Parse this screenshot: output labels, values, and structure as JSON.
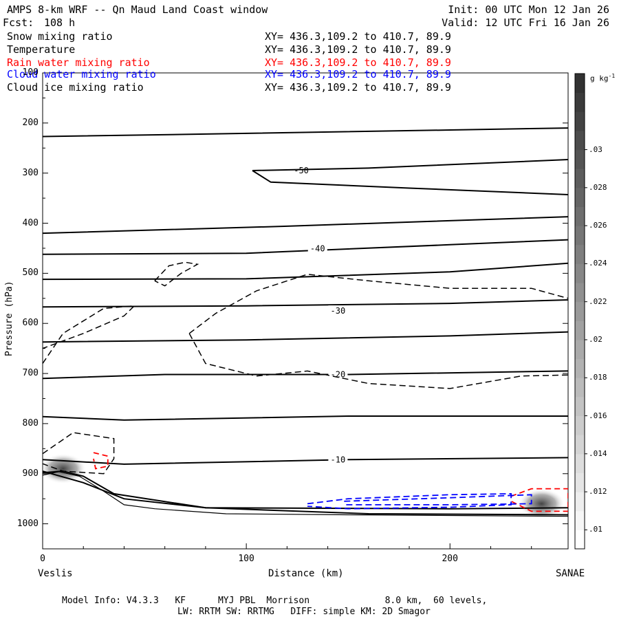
{
  "header": {
    "title": "AMPS 8-km WRF -- Qn Maud Land Coast window",
    "fcst_label": "Fcst:",
    "fcst_value": "108 h",
    "init": "Init: 00 UTC Mon 12 Jan 26",
    "valid": "Valid: 12 UTC Fri 16 Jan 26"
  },
  "legend": [
    {
      "name": "Snow mixing ratio",
      "xy": "XY= 436.3,109.2 to 410.7, 89.9",
      "color": "#000000"
    },
    {
      "name": "Temperature",
      "xy": "XY= 436.3,109.2 to 410.7, 89.9",
      "color": "#000000"
    },
    {
      "name": "Rain water mixing ratio",
      "xy": "XY= 436.3,109.2 to 410.7, 89.9",
      "color": "#ff0000"
    },
    {
      "name": "Cloud water mixing ratio",
      "xy": "XY= 436.3,109.2 to 410.7, 89.9",
      "color": "#0000ff"
    },
    {
      "name": "Cloud ice mixing ratio",
      "xy": "XY= 436.3,109.2 to 410.7, 89.9",
      "color": "#000000"
    }
  ],
  "axes": {
    "xlabel": "Distance (km)",
    "ylabel": "Pressure (hPa)",
    "left_location": "Veslis",
    "right_location": "SANAE"
  },
  "footer": {
    "line1": "Model Info: V4.3.3   KF      MYJ PBL  Morrison              8.0 km,  60 levels,",
    "line2": "LW: RRTM SW: RRTMG   DIFF: simple KM: 2D Smagor"
  },
  "chart_data": {
    "type": "contour",
    "title": "AMPS 8-km WRF -- Qn Maud Land Coast window",
    "xlabel": "Distance (km)",
    "ylabel": "Pressure (hPa)",
    "xlim": [
      0,
      258
    ],
    "ylim": [
      1050,
      100
    ],
    "x_ticks": [
      0,
      100,
      200
    ],
    "y_ticks": [
      100,
      200,
      300,
      400,
      500,
      600,
      700,
      800,
      900,
      1000
    ],
    "colorbar": {
      "unit": "g kg",
      "unit_exp": "-1",
      "labels": [
        ".01",
        ".012",
        ".014",
        ".016",
        ".018",
        ".02",
        ".022",
        ".024",
        ".026",
        ".028",
        ".03"
      ],
      "min": 0.009,
      "max": 0.034,
      "step": 0.001
    },
    "temperature_isotherms": [
      {
        "label": "-50",
        "label_at": [
          127,
          295
        ],
        "points": [
          [
            0,
            227
          ],
          [
            80,
            222
          ],
          [
            200,
            214
          ],
          [
            258,
            210
          ]
        ]
      },
      {
        "label": "",
        "points": [
          [
            103,
            295
          ],
          [
            160,
            290
          ],
          [
            258,
            273
          ]
        ]
      },
      {
        "label": "",
        "points": [
          [
            103,
            295
          ],
          [
            112,
            318
          ],
          [
            180,
            330
          ],
          [
            258,
            343
          ]
        ]
      },
      {
        "label": "",
        "points": [
          [
            0,
            420
          ],
          [
            120,
            406
          ],
          [
            258,
            387
          ]
        ]
      },
      {
        "label": "-40",
        "label_at": [
          135,
          451
        ],
        "points": [
          [
            0,
            462
          ],
          [
            100,
            460
          ],
          [
            200,
            443
          ],
          [
            258,
            433
          ]
        ]
      },
      {
        "label": "",
        "points": [
          [
            0,
            512
          ],
          [
            100,
            511
          ],
          [
            200,
            497
          ],
          [
            258,
            480
          ]
        ]
      },
      {
        "label": "-30",
        "label_at": [
          145,
          575
        ],
        "points": [
          [
            0,
            567
          ],
          [
            100,
            565
          ],
          [
            200,
            560
          ],
          [
            258,
            553
          ]
        ]
      },
      {
        "label": "",
        "points": [
          [
            0,
            637
          ],
          [
            100,
            633
          ],
          [
            200,
            625
          ],
          [
            258,
            617
          ]
        ]
      },
      {
        "label": "-20",
        "label_at": [
          145,
          702
        ],
        "points": [
          [
            0,
            710
          ],
          [
            60,
            702
          ],
          [
            150,
            702
          ],
          [
            258,
            695
          ]
        ]
      },
      {
        "label": "",
        "points": [
          [
            0,
            786
          ],
          [
            40,
            793
          ],
          [
            150,
            785
          ],
          [
            258,
            785
          ]
        ]
      },
      {
        "label": "-10",
        "label_at": [
          145,
          872
        ],
        "points": [
          [
            0,
            872
          ],
          [
            40,
            881
          ],
          [
            150,
            872
          ],
          [
            258,
            868
          ]
        ]
      },
      {
        "label": "",
        "points": [
          [
            0,
            898
          ],
          [
            10,
            895
          ],
          [
            20,
            905
          ],
          [
            35,
            940
          ],
          [
            80,
            968
          ],
          [
            160,
            980
          ],
          [
            258,
            982
          ]
        ]
      },
      {
        "label": "",
        "points": [
          [
            0,
            895
          ],
          [
            20,
            918
          ],
          [
            40,
            950
          ],
          [
            80,
            968
          ],
          [
            200,
            970
          ],
          [
            258,
            968
          ]
        ]
      }
    ],
    "terrain": [
      [
        0,
        903
      ],
      [
        8,
        896
      ],
      [
        18,
        905
      ],
      [
        30,
        935
      ],
      [
        40,
        962
      ],
      [
        55,
        970
      ],
      [
        90,
        980
      ],
      [
        150,
        982
      ],
      [
        258,
        985
      ]
    ],
    "snow_contours": [
      {
        "points": [
          [
            55,
            515
          ],
          [
            62,
            485
          ],
          [
            70,
            478
          ],
          [
            76,
            482
          ],
          [
            68,
            500
          ],
          [
            60,
            525
          ],
          [
            55,
            515
          ]
        ]
      },
      {
        "points": [
          [
            0,
            680
          ],
          [
            10,
            620
          ],
          [
            30,
            570
          ],
          [
            45,
            565
          ],
          [
            40,
            585
          ],
          [
            20,
            620
          ],
          [
            0,
            650
          ]
        ]
      },
      {
        "points": [
          [
            72,
            620
          ],
          [
            85,
            580
          ],
          [
            105,
            535
          ],
          [
            130,
            502
          ],
          [
            160,
            515
          ],
          [
            200,
            530
          ],
          [
            240,
            530
          ],
          [
            258,
            550
          ]
        ]
      },
      {
        "points": [
          [
            72,
            620
          ],
          [
            80,
            680
          ],
          [
            105,
            705
          ],
          [
            130,
            695
          ],
          [
            160,
            720
          ],
          [
            200,
            730
          ],
          [
            235,
            705
          ],
          [
            258,
            703
          ]
        ]
      },
      {
        "points": [
          [
            0,
            860
          ],
          [
            15,
            818
          ],
          [
            35,
            830
          ],
          [
            35,
            870
          ],
          [
            30,
            900
          ],
          [
            10,
            895
          ],
          [
            0,
            880
          ]
        ]
      }
    ],
    "rain_contours": [
      {
        "points": [
          [
            25,
            858
          ],
          [
            32,
            865
          ],
          [
            32,
            885
          ],
          [
            26,
            890
          ],
          [
            25,
            870
          ]
        ]
      },
      {
        "points": [
          [
            230,
            945
          ],
          [
            240,
            930
          ],
          [
            258,
            930
          ],
          [
            258,
            975
          ],
          [
            240,
            975
          ],
          [
            230,
            955
          ]
        ]
      }
    ],
    "cloud_water_contours": [
      {
        "points": [
          [
            130,
            960
          ],
          [
            150,
            950
          ],
          [
            200,
            942
          ],
          [
            230,
            940
          ],
          [
            230,
            962
          ],
          [
            200,
            967
          ],
          [
            150,
            970
          ],
          [
            130,
            965
          ]
        ]
      },
      {
        "points": [
          [
            148,
            955
          ],
          [
            200,
            948
          ],
          [
            240,
            942
          ],
          [
            240,
            960
          ],
          [
            200,
            962
          ],
          [
            148,
            962
          ]
        ]
      }
    ],
    "ice_shading": [
      {
        "x": 10,
        "p": 890,
        "intensity": 0.03
      },
      {
        "x": 245,
        "p": 960,
        "intensity": 0.028
      }
    ]
  }
}
